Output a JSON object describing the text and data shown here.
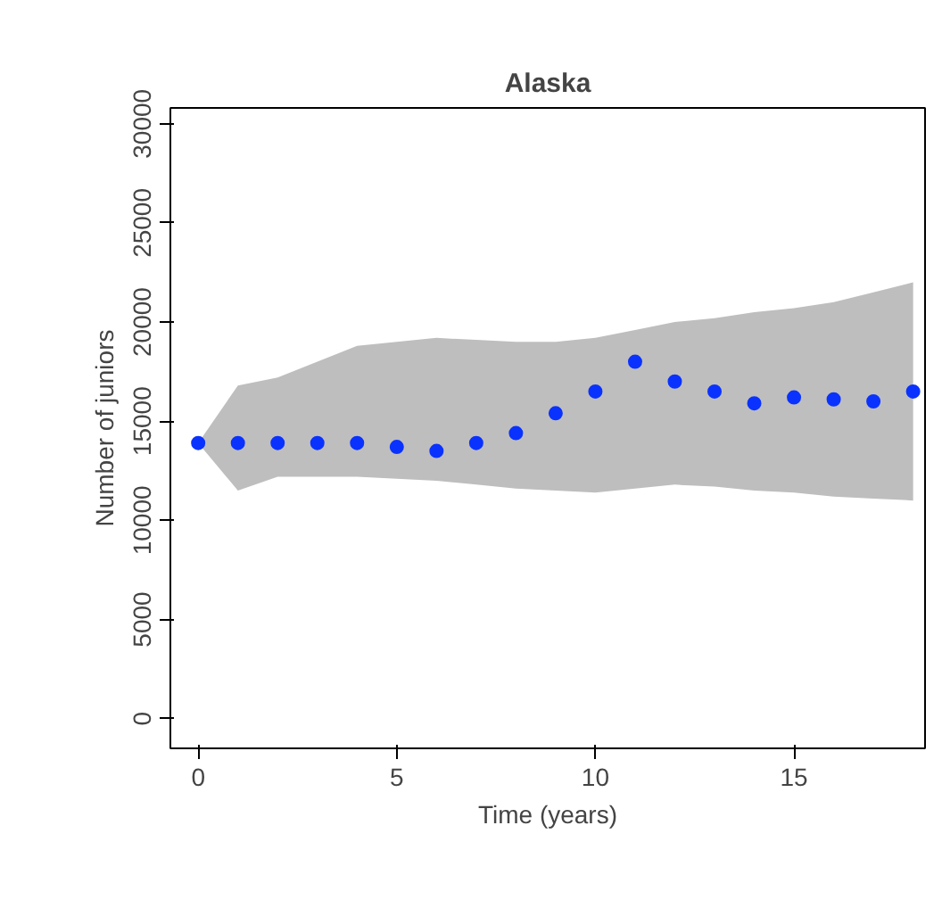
{
  "chart_data": {
    "type": "scatter",
    "title": "Alaska",
    "xlabel": "Time (years)",
    "ylabel": "Number of juniors",
    "x": [
      0,
      1,
      2,
      3,
      4,
      5,
      6,
      7,
      8,
      9,
      10,
      11,
      12,
      13,
      14,
      15,
      16,
      17,
      18
    ],
    "series": [
      {
        "color": "#0a32ff",
        "values": [
          13900,
          13900,
          13900,
          13900,
          13900,
          13700,
          13500,
          13900,
          14400,
          15400,
          16500,
          18000,
          17000,
          16500,
          15900,
          16200,
          16100,
          16000,
          16500
        ],
        "lower": [
          13900,
          11500,
          12200,
          12200,
          12200,
          12100,
          12000,
          11800,
          11600,
          11500,
          11400,
          11600,
          11800,
          11700,
          11500,
          11400,
          11200,
          11100,
          11000
        ],
        "upper": [
          13900,
          16800,
          17200,
          18000,
          18800,
          19000,
          19200,
          19100,
          19000,
          19000,
          19200,
          19600,
          20000,
          20200,
          20500,
          20700,
          21000,
          21500,
          22000
        ]
      }
    ],
    "xlim": [
      -0.7,
      18.3
    ],
    "ylim": [
      -1500,
      30800
    ],
    "xticks": [
      0,
      5,
      10,
      15
    ],
    "yticks": [
      0,
      5000,
      10000,
      15000,
      20000,
      25000,
      30000
    ],
    "marker": "circle",
    "grid": false
  }
}
